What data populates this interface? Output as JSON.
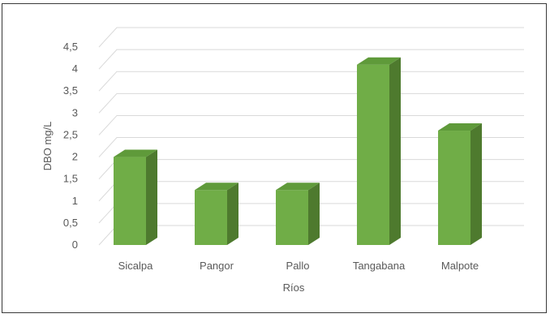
{
  "chart_data": {
    "type": "bar",
    "style": "3d-column",
    "categories": [
      "Sicalpa",
      "Pangor",
      "Pallo",
      "Tangabana",
      "Malpote"
    ],
    "values": [
      2.0,
      1.25,
      1.25,
      4.1,
      2.6
    ],
    "xlabel": "Ríos",
    "ylabel": "DBO mg/L",
    "ylim": [
      0,
      4.5
    ],
    "yticks": [
      "0",
      "0,5",
      "1",
      "1,5",
      "2",
      "2,5",
      "3",
      "3,5",
      "4",
      "4,5"
    ],
    "grid": true,
    "legend": "none",
    "colors": {
      "front": "#70ad47",
      "side": "#4e7a2e",
      "top": "#5f9a3a",
      "grid": "#d9d9d9"
    }
  }
}
